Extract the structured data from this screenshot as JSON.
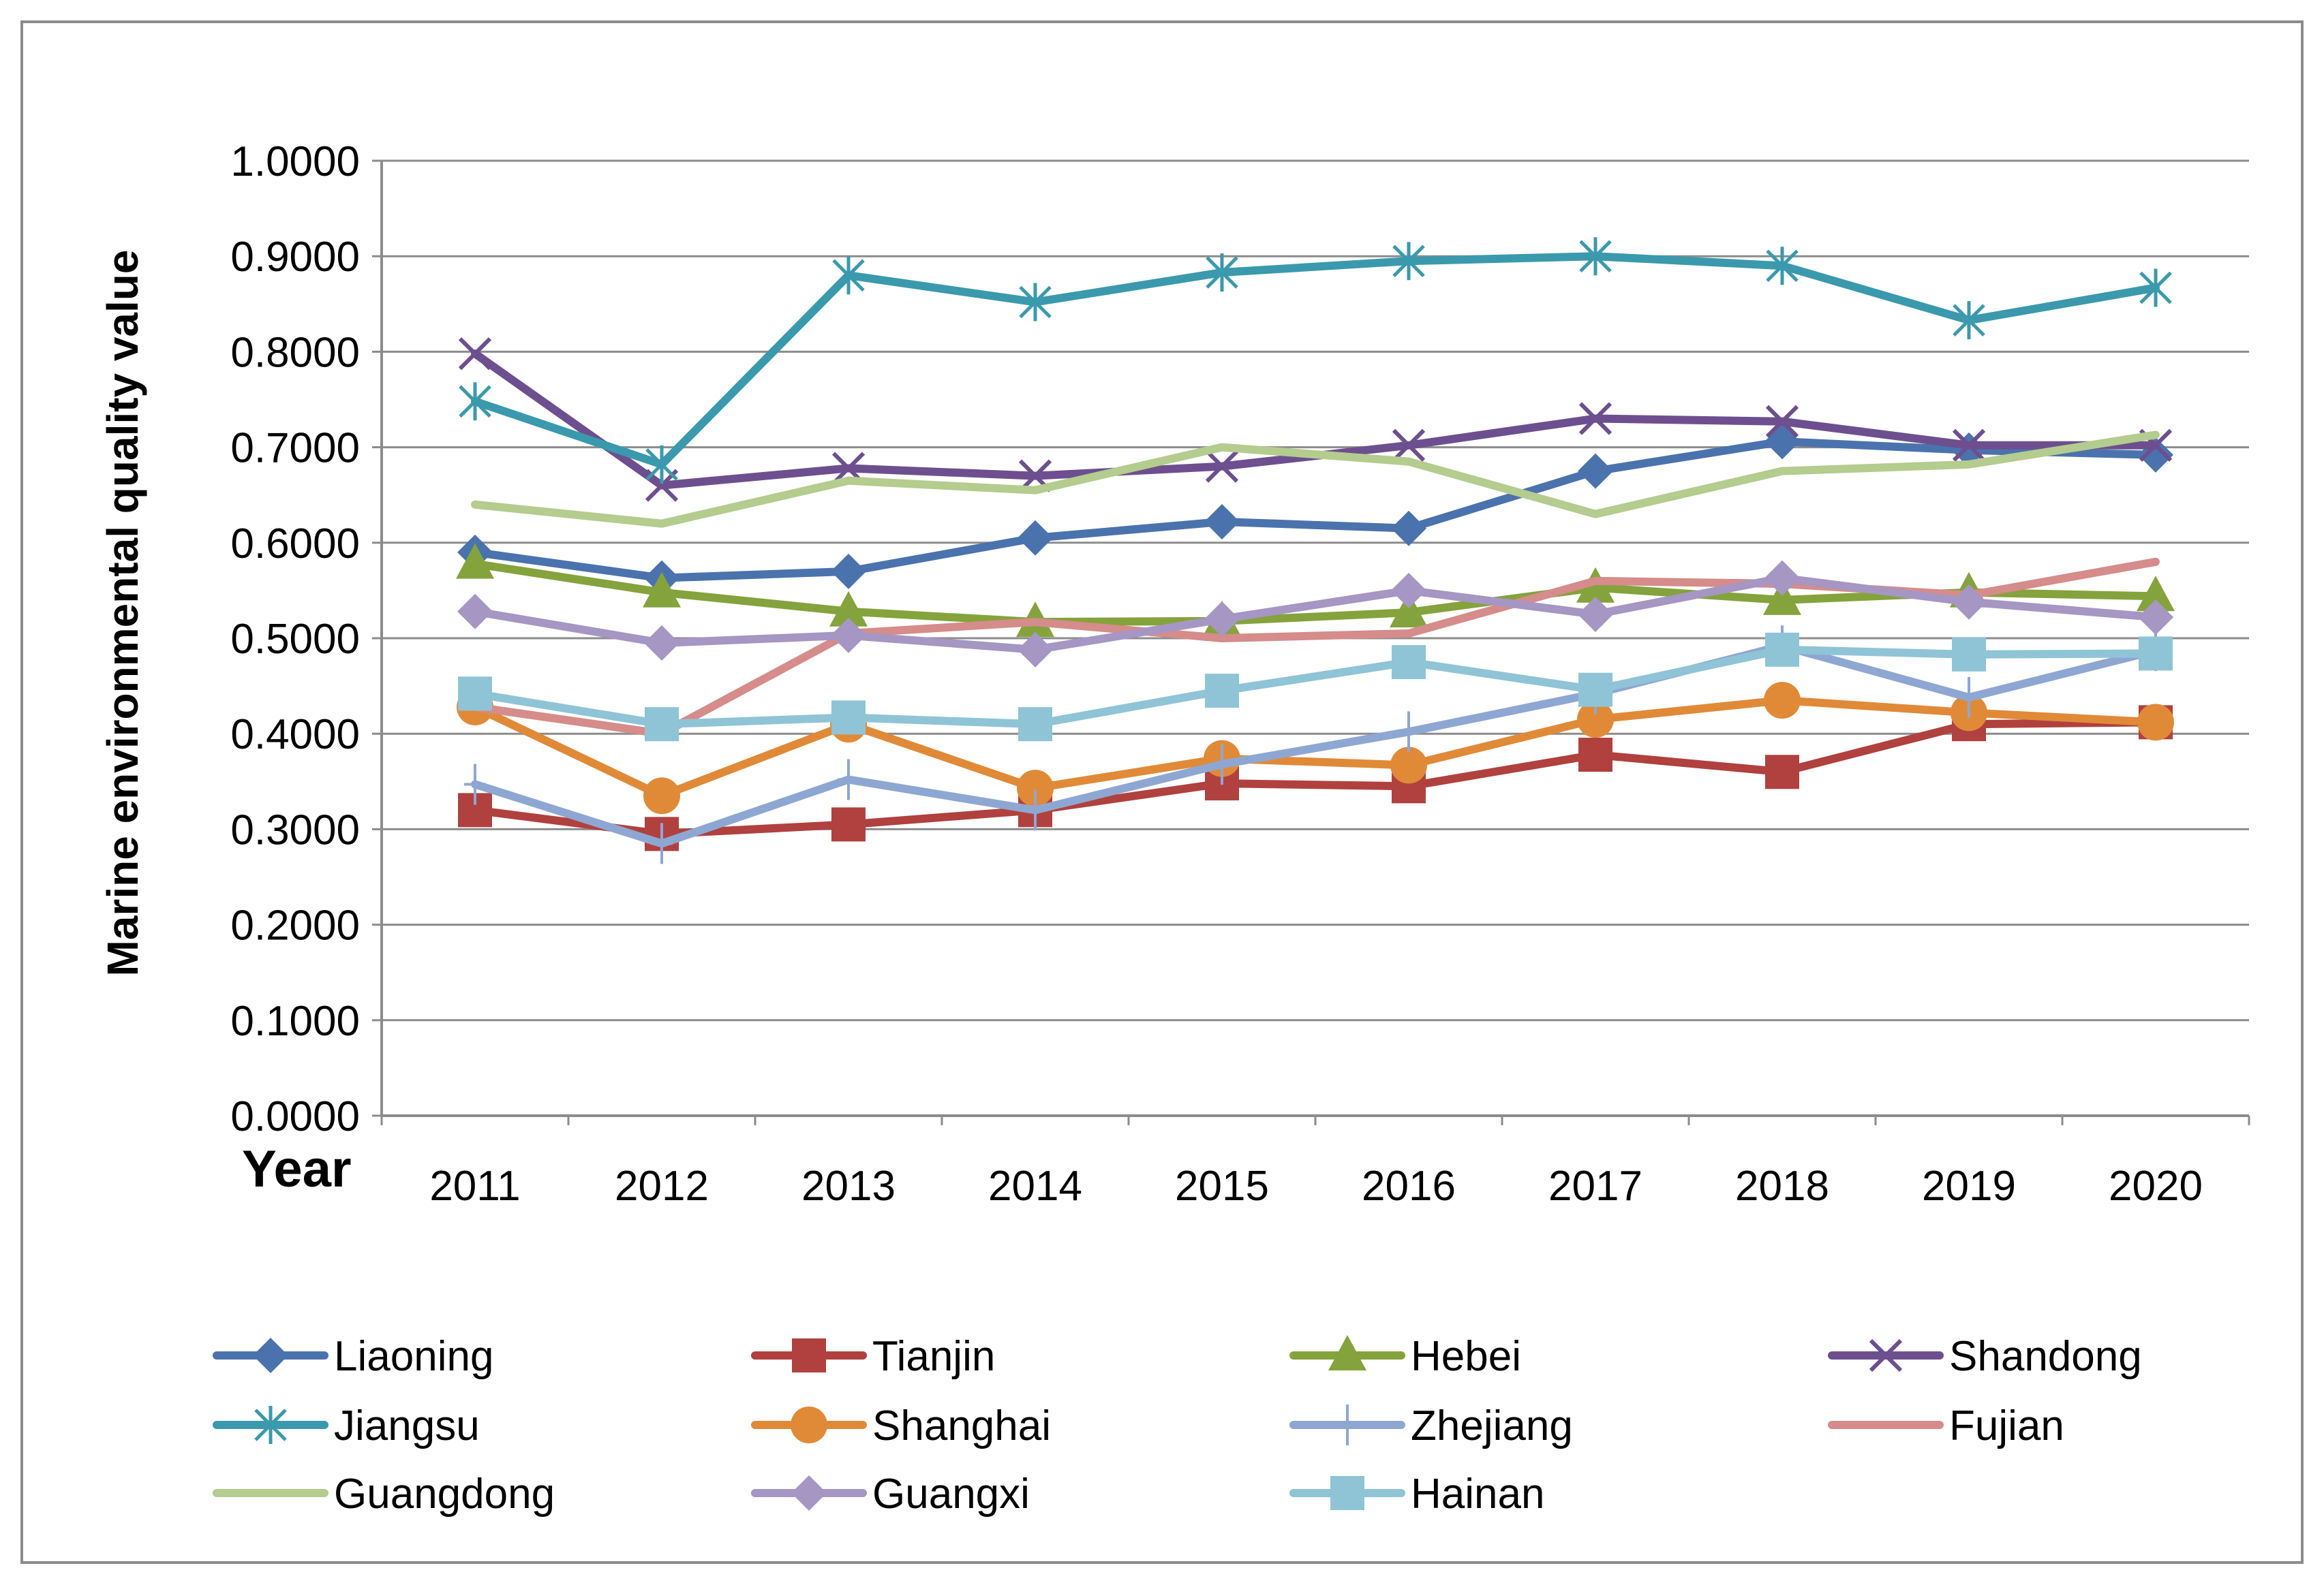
{
  "chart_data": {
    "type": "line",
    "title": "",
    "xlabel": "Year",
    "ylabel": "Marine environmental quality value",
    "ylim": [
      0,
      1
    ],
    "yticks": [
      "0.0000",
      "0.1000",
      "0.2000",
      "0.3000",
      "0.4000",
      "0.5000",
      "0.6000",
      "0.7000",
      "0.8000",
      "0.9000",
      "1.0000"
    ],
    "categories": [
      "2011",
      "2012",
      "2013",
      "2014",
      "2015",
      "2016",
      "2017",
      "2018",
      "2019",
      "2020"
    ],
    "grid": true,
    "legend_position": "bottom",
    "series": [
      {
        "name": "Liaoning",
        "color": "#4A73AD",
        "marker": "diamond",
        "values": [
          0.59,
          0.563,
          0.57,
          0.605,
          0.622,
          0.615,
          0.675,
          0.706,
          0.697,
          0.692
        ]
      },
      {
        "name": "Tianjin",
        "color": "#B0413E",
        "marker": "square",
        "values": [
          0.32,
          0.295,
          0.305,
          0.32,
          0.348,
          0.345,
          0.378,
          0.36,
          0.41,
          0.412
        ]
      },
      {
        "name": "Hebei",
        "color": "#84A33D",
        "marker": "triangle",
        "values": [
          0.578,
          0.548,
          0.528,
          0.517,
          0.518,
          0.527,
          0.553,
          0.54,
          0.548,
          0.544
        ]
      },
      {
        "name": "Shandong",
        "color": "#6D4F8F",
        "marker": "x",
        "values": [
          0.798,
          0.66,
          0.678,
          0.67,
          0.68,
          0.702,
          0.73,
          0.727,
          0.702,
          0.702
        ]
      },
      {
        "name": "Jiangsu",
        "color": "#3A99AD",
        "marker": "asterisk",
        "values": [
          0.748,
          0.682,
          0.88,
          0.852,
          0.883,
          0.895,
          0.9,
          0.89,
          0.833,
          0.867
        ]
      },
      {
        "name": "Shanghai",
        "color": "#E08A38",
        "marker": "circle",
        "values": [
          0.428,
          0.335,
          0.41,
          0.343,
          0.374,
          0.367,
          0.415,
          0.435,
          0.422,
          0.412
        ]
      },
      {
        "name": "Zhejiang",
        "color": "#8EA7D2",
        "marker": "plus",
        "values": [
          0.347,
          0.285,
          0.352,
          0.32,
          0.368,
          0.402,
          0.442,
          0.492,
          0.438,
          0.487
        ]
      },
      {
        "name": "Fujian",
        "color": "#D58C8A",
        "marker": "none",
        "values": [
          0.428,
          0.4,
          0.505,
          0.517,
          0.5,
          0.505,
          0.56,
          0.557,
          0.545,
          0.58
        ]
      },
      {
        "name": "Guangdong",
        "color": "#B4CC8E",
        "marker": "none",
        "values": [
          0.64,
          0.62,
          0.665,
          0.655,
          0.7,
          0.685,
          0.63,
          0.675,
          0.682,
          0.713
        ]
      },
      {
        "name": "Guangxi",
        "color": "#A696C3",
        "marker": "diamond",
        "values": [
          0.528,
          0.495,
          0.503,
          0.488,
          0.52,
          0.55,
          0.525,
          0.563,
          0.538,
          0.522
        ]
      },
      {
        "name": "Hainan",
        "color": "#8FC4D6",
        "marker": "square",
        "values": [
          0.442,
          0.41,
          0.417,
          0.41,
          0.445,
          0.475,
          0.446,
          0.488,
          0.483,
          0.484
        ]
      }
    ]
  }
}
